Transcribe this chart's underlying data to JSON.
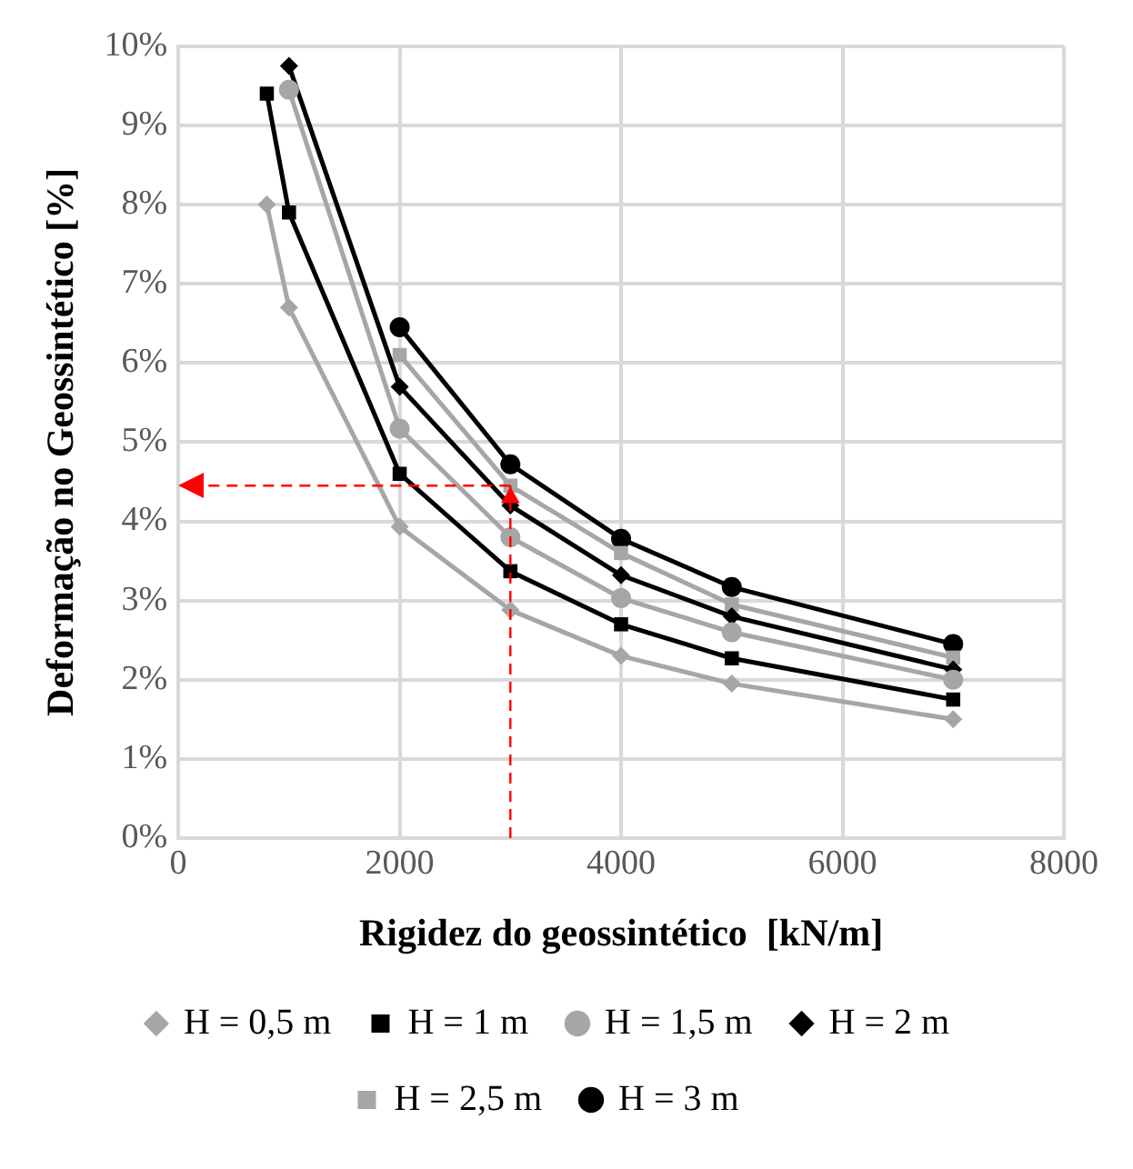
{
  "chart_data": {
    "type": "line",
    "xlabel": "Rigidez do geossintético  [kN/m]",
    "ylabel": "Deformação no Geossintético [%]",
    "xlim": [
      0,
      8000
    ],
    "xticks": [
      0,
      2000,
      4000,
      6000,
      8000
    ],
    "ylim": [
      0,
      10
    ],
    "yticks": [
      {
        "value": 0,
        "label": "0%"
      },
      {
        "value": 1,
        "label": "1%"
      },
      {
        "value": 2,
        "label": "2%"
      },
      {
        "value": 3,
        "label": "3%"
      },
      {
        "value": 4,
        "label": "4%"
      },
      {
        "value": 5,
        "label": "5%"
      },
      {
        "value": 6,
        "label": "6%"
      },
      {
        "value": 7,
        "label": "7%"
      },
      {
        "value": 8,
        "label": "8%"
      },
      {
        "value": 9,
        "label": "9%"
      },
      {
        "value": 10,
        "label": "10%"
      }
    ],
    "grid": true,
    "legend": "bottom",
    "line_style": "solid",
    "series": [
      {
        "name": "H = 0,5 m",
        "color": "#a6a6a6",
        "marker": "diamond",
        "x": [
          800,
          1000,
          2000,
          3000,
          4000,
          5000,
          7000
        ],
        "values": [
          8.0,
          6.7,
          3.93,
          2.88,
          2.3,
          1.95,
          1.5
        ]
      },
      {
        "name": "H = 1 m",
        "color": "#000000",
        "marker": "square",
        "x": [
          800,
          1000,
          2000,
          3000,
          4000,
          5000,
          7000
        ],
        "values": [
          9.4,
          7.9,
          4.6,
          3.37,
          2.7,
          2.27,
          1.75
        ]
      },
      {
        "name": "H = 1,5 m",
        "color": "#a6a6a6",
        "marker": "circle",
        "x": [
          1000,
          2000,
          3000,
          4000,
          5000,
          7000
        ],
        "values": [
          9.45,
          5.17,
          3.8,
          3.03,
          2.6,
          2.0
        ]
      },
      {
        "name": "H = 2 m",
        "color": "#000000",
        "marker": "diamond",
        "x": [
          1000,
          2000,
          3000,
          4000,
          5000,
          7000
        ],
        "values": [
          9.75,
          5.7,
          4.2,
          3.32,
          2.8,
          2.13
        ]
      },
      {
        "name": "H = 2,5 m",
        "color": "#a6a6a6",
        "marker": "square",
        "x": [
          2000,
          3000,
          4000,
          5000,
          7000
        ],
        "values": [
          6.1,
          4.45,
          3.6,
          2.95,
          2.28
        ]
      },
      {
        "name": "H = 3 m",
        "color": "#000000",
        "marker": "circle",
        "x": [
          2000,
          3000,
          4000,
          5000,
          7000
        ],
        "values": [
          6.45,
          4.72,
          3.78,
          3.17,
          2.45
        ]
      },
      {
        "type": "scatter",
        "color": "#ff0000",
        "marker": "triangle",
        "x": [
          3000
        ],
        "values": [
          4.3
        ]
      }
    ],
    "ref_lines": [
      {
        "axis": "x",
        "value": 3000,
        "color": "#ff0000",
        "line_style": "dashed"
      },
      {
        "axis": "y",
        "value": 4.45,
        "color": "#ff0000",
        "line_style": "dashed"
      }
    ]
  }
}
